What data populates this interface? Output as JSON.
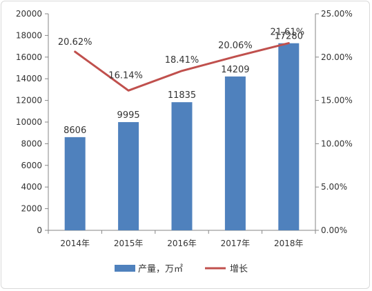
{
  "chart_data": {
    "type": "bar",
    "categories": [
      "2014年",
      "2015年",
      "2016年",
      "2017年",
      "2018年"
    ],
    "series": [
      {
        "name": "产量，万㎡",
        "type": "bar",
        "axis": "left",
        "color": "#4f81bd",
        "values": [
          8606,
          9995,
          11835,
          14209,
          17280
        ],
        "labels": [
          "8606",
          "9995",
          "11835",
          "14209",
          "17280"
        ]
      },
      {
        "name": "增长",
        "type": "line",
        "axis": "right",
        "color": "#c0504d",
        "values": [
          20.62,
          16.14,
          18.41,
          20.06,
          21.61
        ],
        "labels": [
          "20.62%",
          "16.14%",
          "18.41%",
          "20.06%",
          "21.61%"
        ]
      }
    ],
    "y_left": {
      "min": 0,
      "max": 20000,
      "step": 2000,
      "ticks": [
        "0",
        "2000",
        "4000",
        "6000",
        "8000",
        "10000",
        "12000",
        "14000",
        "16000",
        "18000",
        "20000"
      ]
    },
    "y_right": {
      "min": 0,
      "max": 25,
      "step": 5,
      "ticks": [
        "0.00%",
        "5.00%",
        "10.00%",
        "15.00%",
        "20.00%",
        "25.00%"
      ]
    },
    "grid": false,
    "legend_position": "bottom"
  }
}
